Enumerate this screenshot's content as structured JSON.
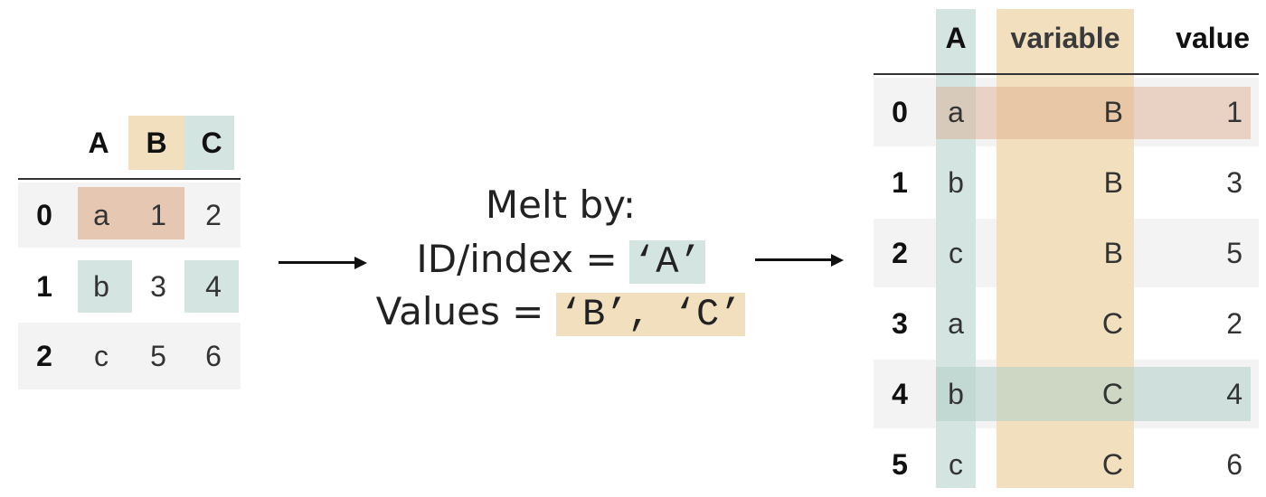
{
  "colors": {
    "tan": "#f1dfbe",
    "teal": "#d4e4e1",
    "rose": "#e6c8b2",
    "zebra": "#f3f3f3",
    "text": "#222222"
  },
  "source_table": {
    "headers": [
      "A",
      "B",
      "C"
    ],
    "rows": [
      {
        "index": "0",
        "A": "a",
        "B": "1",
        "C": "2"
      },
      {
        "index": "1",
        "A": "b",
        "B": "3",
        "C": "4"
      },
      {
        "index": "2",
        "A": "c",
        "B": "5",
        "C": "6"
      }
    ]
  },
  "melt": {
    "title": "Melt by:",
    "id_label": "ID/index =",
    "id_value": "‘A’",
    "values_label": "Values =",
    "values_value": "‘B’, ‘C’"
  },
  "result_table": {
    "headers": [
      "A",
      "variable",
      "value"
    ],
    "rows": [
      {
        "index": "0",
        "A": "a",
        "variable": "B",
        "value": "1"
      },
      {
        "index": "1",
        "A": "b",
        "variable": "B",
        "value": "3"
      },
      {
        "index": "2",
        "A": "c",
        "variable": "B",
        "value": "5"
      },
      {
        "index": "3",
        "A": "a",
        "variable": "C",
        "value": "2"
      },
      {
        "index": "4",
        "A": "b",
        "variable": "C",
        "value": "4"
      },
      {
        "index": "5",
        "A": "c",
        "variable": "C",
        "value": "6"
      }
    ]
  }
}
